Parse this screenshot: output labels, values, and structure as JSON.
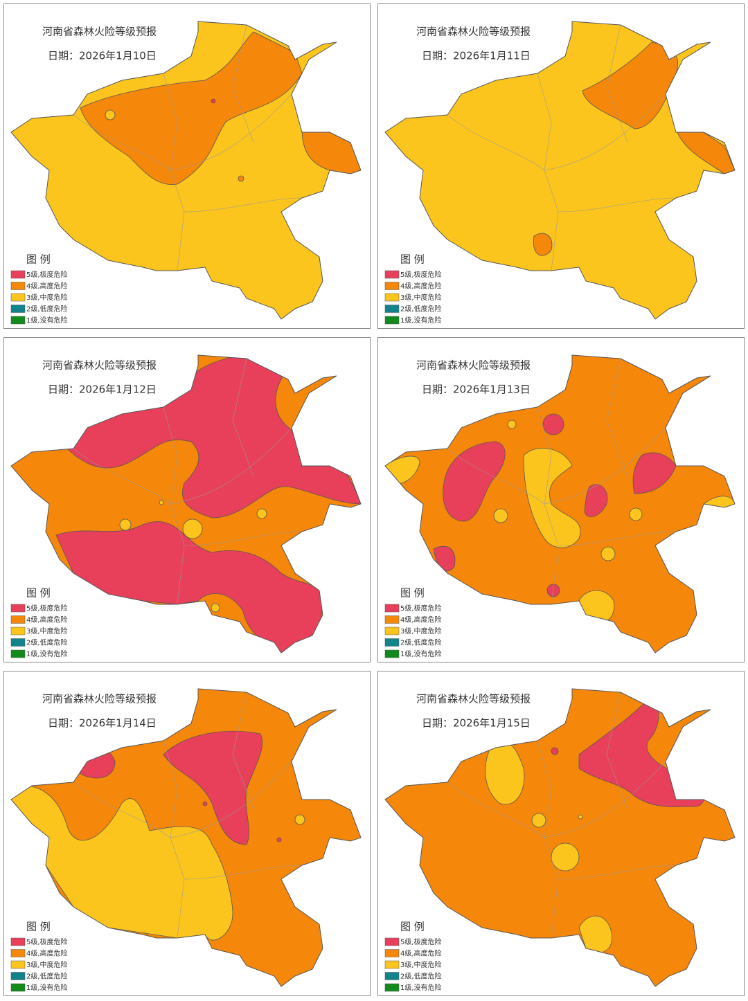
{
  "panels": [
    {
      "title": "河南省森林火险等级预报",
      "date": "日期：2026年1月10日"
    },
    {
      "title": "河南省森林火险等级预报",
      "date": "日期：2026年1月11日"
    },
    {
      "title": "河南省森林火险等级预报",
      "date": "日期：2026年1月12日"
    },
    {
      "title": "河南省森林火险等级预报",
      "date": "日期：2026年1月13日"
    },
    {
      "title": "河南省森林火险等级预报",
      "date": "日期：2026年1月14日"
    },
    {
      "title": "河南省森林火险等级预报",
      "date": "日期：2026年1月15日"
    }
  ],
  "legend": {
    "title": "图  例",
    "items": [
      {
        "label": "5级,极度危险",
        "color": "#e8405a"
      },
      {
        "label": "4级,高度危险",
        "color": "#f5870a"
      },
      {
        "label": "3级,中度危险",
        "color": "#fbc51e"
      },
      {
        "label": "2级,低度危险",
        "color": "#12838a"
      },
      {
        "label": "1级,没有危险",
        "color": "#138a1c"
      }
    ]
  }
}
